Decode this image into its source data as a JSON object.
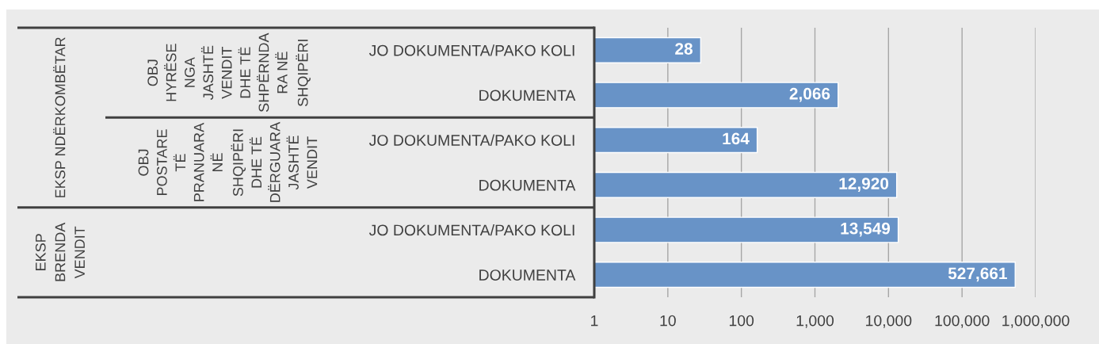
{
  "chart_data": {
    "type": "bar",
    "orientation": "horizontal",
    "categories": [
      "JO DOKUMENTA/PAKO KOLI",
      "DOKUMENTA",
      "JO DOKUMENTA/PAKO KOLI",
      "DOKUMENTA",
      "JO DOKUMENTA/PAKO KOLI",
      "DOKUMENTA"
    ],
    "values": [
      28,
      2066,
      164,
      12920,
      13549,
      527661
    ],
    "color": "#6893c7",
    "value_labels": [
      "28",
      "2,066",
      "164",
      "12,920",
      "13,549",
      "527,661"
    ],
    "log": "x",
    "xlim": [
      1,
      1000000
    ],
    "xticks": [
      1,
      10,
      100,
      {
        "value": 1000,
        "label": "1,000"
      },
      {
        "value": 10000,
        "label": "10,000"
      },
      {
        "value": 100000,
        "label": "100,000"
      },
      {
        "value": 1000000,
        "label": "1,000,000"
      }
    ],
    "grid": "x",
    "annotations": [
      "EKSP NDËRKOMBËTAR",
      "OBJ\nHYRËSE\nNGA\nJASHTË\nVENDIT\nDHE TË\nSHPËRNDA\nRA NË\nSHQIPËRI",
      "OBJ\nPOSTARE\nTË\nPRANUARA\nNË\nSHQIPËRI\nDHE TË\nDËRGUARA\nJASHTË\nVENDIT",
      "EKSP\nBRENDA\nVENDIT"
    ]
  }
}
